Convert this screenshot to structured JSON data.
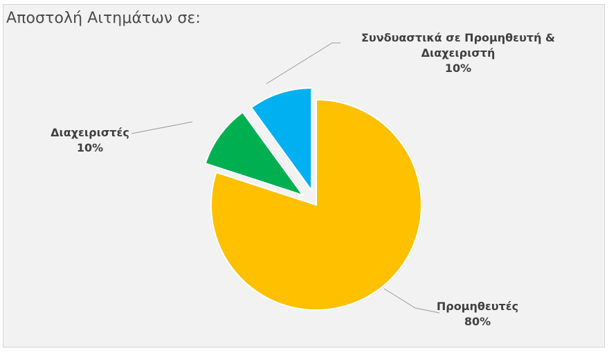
{
  "chart_data": {
    "type": "pie",
    "title": "Αποστολή Αιτημάτων σε:",
    "slices": [
      {
        "label": "Προμηθευτές",
        "value": 80,
        "pct_text": "80%",
        "color": "#FFC000"
      },
      {
        "label": "Διαχειριστές",
        "value": 10,
        "pct_text": "10%",
        "color": "#00B050"
      },
      {
        "label": "Συνδυαστικά σε Προμηθευτή & Διαχειριστή",
        "value": 10,
        "pct_text": "10%",
        "color": "#00B0F0"
      }
    ],
    "legend": "none"
  }
}
